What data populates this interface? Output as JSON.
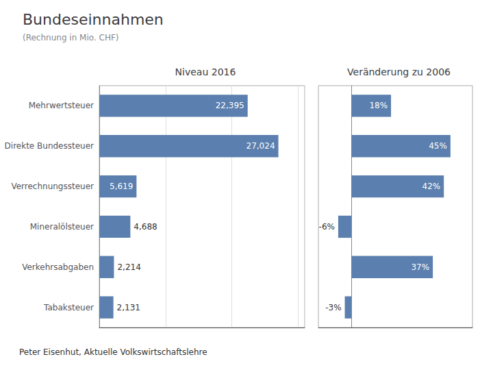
{
  "title": "Bundeseinnahmen",
  "subtitle": "(Rechnung in Mio. CHF)",
  "annotations": [
    "Peter Eisenhut, Aktuelle Volkswirtschaftslehre"
  ],
  "chart_data": [
    {
      "type": "bar",
      "orientation": "horizontal",
      "title": "Niveau 2016",
      "categories": [
        "Mehrwertsteuer",
        "Direkte Bundessteuer",
        "Verrechnungssteuer",
        "Mineralölsteuer",
        "Verkehrsabgaben",
        "Tabaksteuer"
      ],
      "values": [
        22395,
        27024,
        5619,
        4688,
        2214,
        2131
      ],
      "value_labels": [
        "22,395",
        "27,024",
        "5,619",
        "4,688",
        "2,214",
        "2,131"
      ],
      "data_labels": true,
      "color": "#5b7fae",
      "xlim": [
        0,
        31000
      ],
      "xticks": [
        0,
        10000,
        20000,
        30000
      ],
      "grid": true,
      "tick_labels": "y"
    },
    {
      "type": "bar",
      "orientation": "horizontal",
      "title": "Veränderung zu 2006",
      "categories": [
        "Mehrwertsteuer",
        "Direkte Bundessteuer",
        "Verrechnungssteuer",
        "Mineralölsteuer",
        "Verkehrsabgaben",
        "Tabaksteuer"
      ],
      "values": [
        18,
        45,
        42,
        -6,
        37,
        -3
      ],
      "value_labels": [
        "18%",
        "45%",
        "42%",
        "-6%",
        "37%",
        "-3%"
      ],
      "data_labels": true,
      "color": "#5b7fae",
      "xlim": [
        -15,
        55
      ],
      "grid": false,
      "tick_labels": false
    }
  ]
}
